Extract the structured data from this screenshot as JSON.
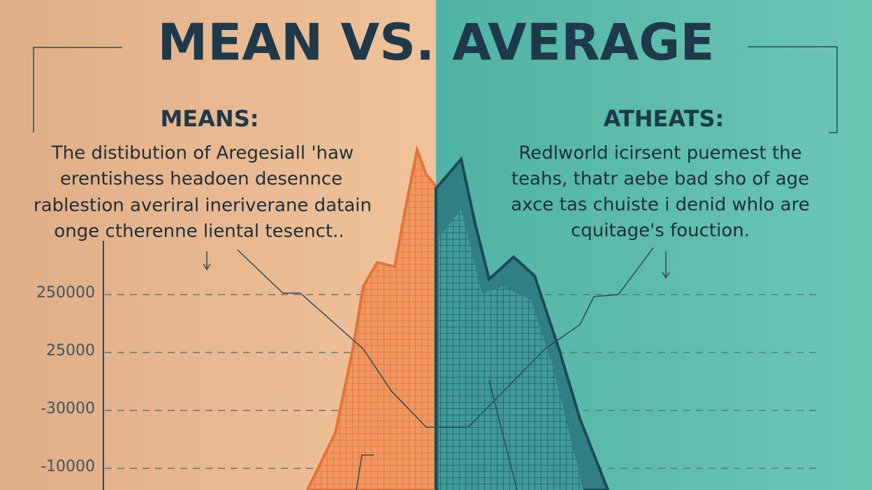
{
  "title": "MEAN VS. AVERAGE",
  "left": {
    "heading": "MEANS:",
    "lines": [
      "The distibution of Aregesiall 'haw",
      "erentishess headoen desennce",
      "rablestion averiral ineriverane datain",
      "onge ctherenne liental tesenct.."
    ]
  },
  "right": {
    "heading": "ATHEATS:",
    "lines": [
      "Redlworld icirsent puemest the",
      "teahs, thatr aebe bad sho of age",
      "axce tas chuiste i denid whlo are",
      "cquitage's fouction."
    ]
  },
  "axis_labels": [
    "250000",
    "25000",
    "-30000",
    "-10000"
  ]
}
